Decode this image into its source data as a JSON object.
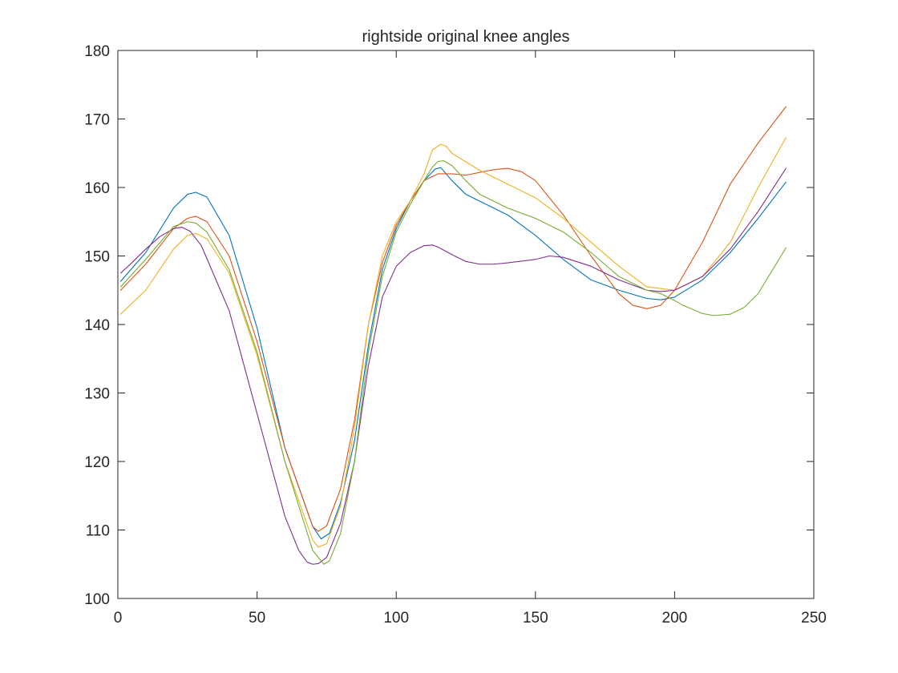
{
  "chart_data": {
    "type": "line",
    "title": "rightside original knee angles",
    "xlabel": "",
    "ylabel": "",
    "xlim": [
      0,
      250
    ],
    "ylim": [
      100,
      180
    ],
    "xticks": [
      0,
      50,
      100,
      150,
      200,
      250
    ],
    "yticks": [
      100,
      110,
      120,
      130,
      140,
      150,
      160,
      170,
      180
    ],
    "xtick_labels": [
      "0",
      "50",
      "100",
      "150",
      "200",
      "250"
    ],
    "ytick_labels": [
      "100",
      "110",
      "120",
      "130",
      "140",
      "150",
      "160",
      "170",
      "180"
    ],
    "grid": false,
    "legend": "none",
    "series": [
      {
        "color": "#0072BD",
        "x": [
          1,
          10,
          20,
          25,
          28,
          32,
          40,
          50,
          60,
          70,
          73,
          76,
          80,
          85,
          90,
          95,
          100,
          105,
          110,
          114,
          116,
          120,
          125,
          130,
          140,
          150,
          160,
          170,
          180,
          190,
          195,
          200,
          210,
          220,
          230,
          240
        ],
        "y": [
          146.3,
          150.5,
          157.0,
          159.0,
          159.3,
          158.6,
          153.0,
          139.5,
          122.0,
          110.5,
          108.7,
          109.5,
          114.0,
          123.0,
          137.0,
          148.0,
          154.0,
          158.0,
          161.0,
          162.7,
          162.9,
          161.0,
          159.0,
          158.0,
          156.0,
          153.0,
          149.5,
          146.5,
          145.0,
          143.8,
          143.6,
          144.0,
          146.5,
          150.5,
          155.5,
          160.8
        ]
      },
      {
        "color": "#D95319",
        "x": [
          1,
          10,
          20,
          25,
          28,
          32,
          40,
          50,
          60,
          70,
          72,
          75,
          80,
          85,
          90,
          95,
          100,
          105,
          110,
          115,
          120,
          125,
          130,
          135,
          140,
          145,
          150,
          160,
          170,
          180,
          185,
          190,
          195,
          200,
          210,
          220,
          230,
          240
        ],
        "y": [
          145.0,
          148.8,
          154.0,
          155.5,
          155.8,
          155.0,
          150.0,
          137.5,
          122.0,
          110.5,
          109.8,
          110.6,
          116.0,
          126.0,
          140.0,
          149.0,
          154.5,
          158.0,
          161.0,
          162.0,
          162.0,
          161.8,
          162.2,
          162.6,
          162.8,
          162.3,
          161.0,
          156.0,
          150.0,
          144.5,
          142.8,
          142.3,
          142.8,
          145.0,
          152.0,
          160.5,
          166.5,
          171.8
        ]
      },
      {
        "color": "#EDB120",
        "x": [
          1,
          10,
          20,
          25,
          28,
          32,
          40,
          50,
          60,
          70,
          72,
          75,
          80,
          85,
          90,
          95,
          100,
          105,
          110,
          113,
          116,
          118,
          120,
          130,
          140,
          150,
          160,
          170,
          180,
          190,
          200,
          210,
          220,
          230,
          240
        ],
        "y": [
          141.5,
          145.0,
          151.0,
          153.0,
          153.3,
          152.5,
          147.5,
          135.5,
          120.0,
          108.5,
          107.5,
          108.0,
          113.5,
          125.0,
          140.0,
          150.0,
          155.0,
          158.0,
          162.0,
          165.5,
          166.3,
          166.0,
          165.0,
          162.5,
          160.5,
          158.5,
          155.5,
          152.0,
          148.5,
          145.5,
          145.0,
          147.0,
          152.0,
          160.0,
          167.3
        ]
      },
      {
        "color": "#7E2F8E",
        "x": [
          1,
          5,
          10,
          15,
          20,
          23,
          26,
          30,
          40,
          50,
          60,
          65,
          68,
          70,
          72,
          75,
          80,
          85,
          90,
          92,
          95,
          100,
          105,
          110,
          113,
          115,
          120,
          125,
          130,
          135,
          140,
          150,
          155,
          160,
          170,
          180,
          190,
          195,
          200,
          210,
          220,
          230,
          240
        ],
        "y": [
          147.5,
          149.0,
          151.0,
          152.8,
          154.0,
          154.2,
          153.6,
          151.5,
          142.0,
          127.0,
          112.0,
          107.0,
          105.3,
          105.0,
          105.1,
          106.0,
          111.0,
          120.0,
          134.0,
          138.0,
          144.0,
          148.5,
          150.5,
          151.5,
          151.6,
          151.3,
          150.2,
          149.2,
          148.8,
          148.8,
          149.0,
          149.5,
          150.0,
          149.8,
          148.5,
          146.5,
          145.0,
          144.8,
          145.0,
          147.0,
          151.0,
          156.5,
          162.8
        ]
      },
      {
        "color": "#77AC30",
        "x": [
          1,
          10,
          20,
          25,
          28,
          32,
          40,
          50,
          60,
          70,
          74,
          76,
          80,
          85,
          90,
          95,
          100,
          105,
          110,
          113,
          115,
          117,
          120,
          125,
          130,
          140,
          150,
          160,
          170,
          180,
          190,
          195,
          200,
          203,
          206,
          210,
          214,
          220,
          225,
          230,
          240
        ],
        "y": [
          145.5,
          149.5,
          154.3,
          155.0,
          154.8,
          153.5,
          148.0,
          136.0,
          120.0,
          107.0,
          105.0,
          105.5,
          109.5,
          120.0,
          136.0,
          147.0,
          153.5,
          157.5,
          161.0,
          163.0,
          163.8,
          163.9,
          163.2,
          161.0,
          159.0,
          157.0,
          155.5,
          153.5,
          150.5,
          147.0,
          145.0,
          144.5,
          143.5,
          142.8,
          142.3,
          141.6,
          141.3,
          141.5,
          142.5,
          144.5,
          151.2
        ]
      }
    ]
  }
}
